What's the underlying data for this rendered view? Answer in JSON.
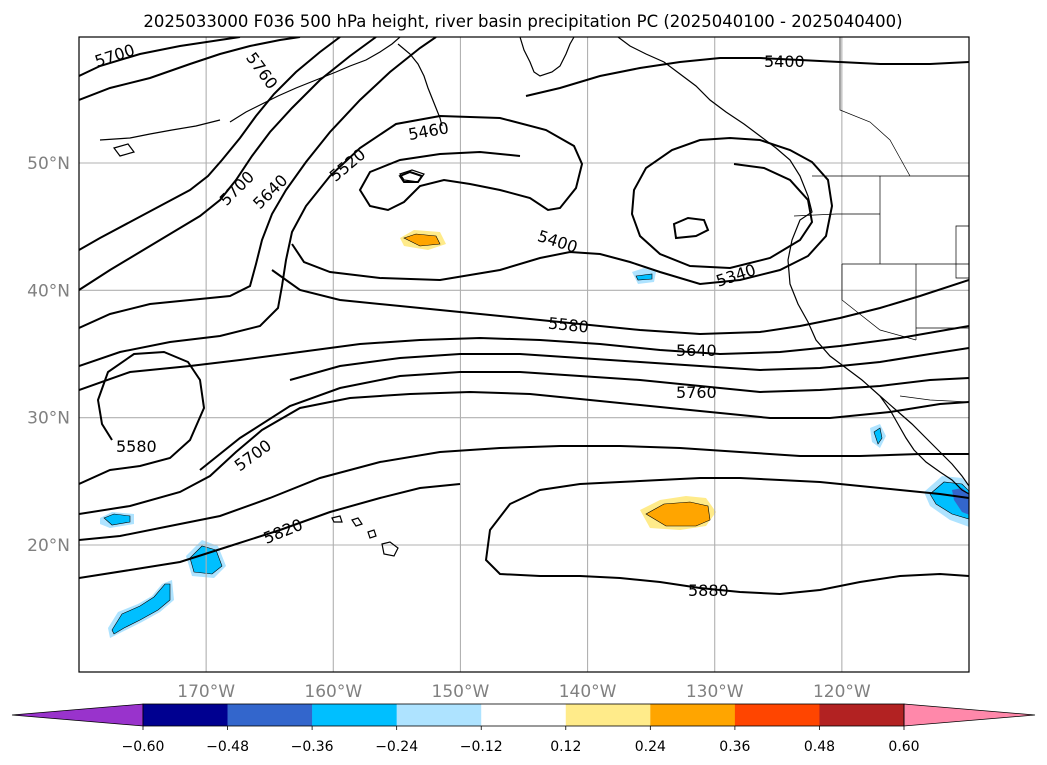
{
  "title": "2025033000 F036 500 hPa height, river basin precipitation PC (2025040100 - 2025040400)",
  "map": {
    "lon_range": [
      -180,
      -110
    ],
    "lat_range": [
      10,
      60
    ],
    "lat_ticks": [
      {
        "value": 20,
        "label": "20°N"
      },
      {
        "value": 30,
        "label": "30°N"
      },
      {
        "value": 40,
        "label": "40°N"
      },
      {
        "value": 50,
        "label": "50°N"
      }
    ],
    "lon_ticks": [
      {
        "value": -170,
        "label": "170°W"
      },
      {
        "value": -160,
        "label": "160°W"
      },
      {
        "value": -150,
        "label": "150°W"
      },
      {
        "value": -140,
        "label": "140°W"
      },
      {
        "value": -130,
        "label": "130°W"
      },
      {
        "value": -120,
        "label": "120°W"
      }
    ],
    "grid": true,
    "tick_label_color": "#808080"
  },
  "height_contours": {
    "units": "m",
    "levels": [
      {
        "value": 5340,
        "label": "5340"
      },
      {
        "value": 5400,
        "label": "5400"
      },
      {
        "value": 5460,
        "label": "5460"
      },
      {
        "value": 5520,
        "label": "5520"
      },
      {
        "value": 5580,
        "label": "5580"
      },
      {
        "value": 5640,
        "label": "5640"
      },
      {
        "value": 5700,
        "label": "5700"
      },
      {
        "value": 5760,
        "label": "5760"
      },
      {
        "value": 5820,
        "label": "5820"
      },
      {
        "value": 5880,
        "label": "5880"
      }
    ],
    "labels_on_map": [
      "5700",
      "5760",
      "5700",
      "5640",
      "5520",
      "5460",
      "5400",
      "5400",
      "5340",
      "5580",
      "5640",
      "5760",
      "5580",
      "5700",
      "5820",
      "5880"
    ]
  },
  "colorbar": {
    "ticks": [
      "−0.60",
      "−0.48",
      "−0.36",
      "−0.24",
      "−0.12",
      "0.12",
      "0.24",
      "0.36",
      "0.48",
      "0.60"
    ],
    "bins": [
      {
        "range": "< -0.60",
        "color": "#9933cc"
      },
      {
        "range": "-0.60 to -0.48",
        "color": "#000090"
      },
      {
        "range": "-0.48 to -0.36",
        "color": "#3366cc"
      },
      {
        "range": "-0.36 to -0.24",
        "color": "#00bfff"
      },
      {
        "range": "-0.24 to -0.12",
        "color": "#aee3ff"
      },
      {
        "range": "-0.12 to 0.12",
        "color": "#ffffff"
      },
      {
        "range": "0.12 to 0.24",
        "color": "#ffeb8a"
      },
      {
        "range": "0.24 to 0.36",
        "color": "#ffa500"
      },
      {
        "range": "0.36 to 0.48",
        "color": "#ff4500"
      },
      {
        "range": "0.48 to 0.60",
        "color": "#b22222"
      },
      {
        "range": "> 0.60",
        "color": "#ff88aa"
      }
    ],
    "extend": "both"
  },
  "precip_patches": [
    {
      "region": "northwest of Hawaii",
      "sign": "negative",
      "color": "#00bfff"
    },
    {
      "region": "west of Hawaii",
      "sign": "negative",
      "color": "#00bfff"
    },
    {
      "region": "north Pacific",
      "sign": "positive",
      "color": "#ffa500"
    },
    {
      "region": "east Pacific subtropics",
      "sign": "positive",
      "color": "#ffa500"
    },
    {
      "region": "Baja California",
      "sign": "negative",
      "color": "#3366cc"
    }
  ]
}
